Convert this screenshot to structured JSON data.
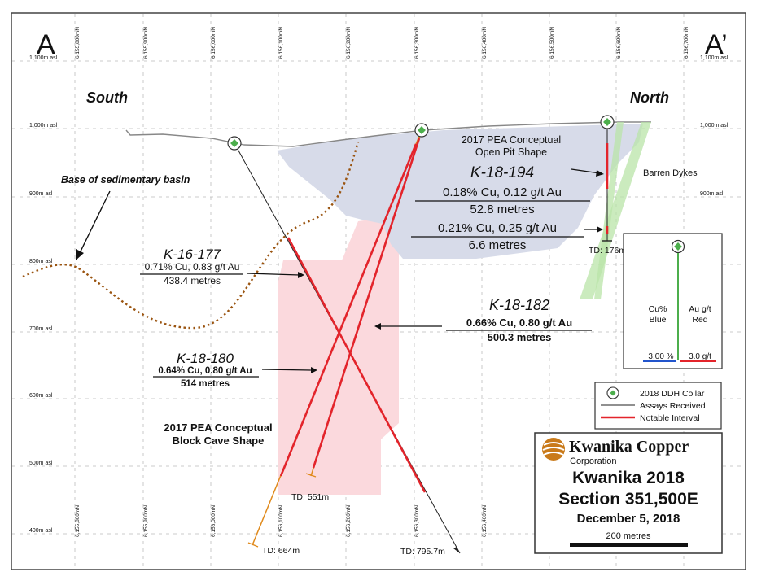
{
  "section_letters": {
    "left": "A",
    "right": "A’"
  },
  "directions": {
    "south": "South",
    "north": "North"
  },
  "elevation_labels": [
    "1,100m asl",
    "1,000m asl",
    "900m asl",
    "800m asl",
    "700m asl",
    "600m asl",
    "500m asl",
    "400m asl"
  ],
  "northing_labels": [
    "6,155,800mN",
    "6,155,900mN",
    "6,156,000mN",
    "6,156,100mN",
    "6,156,200mN",
    "6,156,300mN",
    "6,156,400mN",
    "6,156,500mN",
    "6,156,600mN",
    "6,156,700mN"
  ],
  "pit_label": [
    "2017 PEA Conceptual",
    "Open Pit Shape"
  ],
  "cave_label": [
    "2017 PEA Conceptual",
    "Block Cave Shape"
  ],
  "basin_label": "Base of sedimentary basin",
  "barren_dykes_label": "Barren Dykes",
  "holes": {
    "k18194": {
      "name": "K-18-194",
      "interval1_grade": "0.18% Cu, 0.12 g/t Au",
      "interval1_length": "52.8 metres",
      "interval2_grade": "0.21% Cu, 0.25 g/t Au",
      "interval2_length": "6.6 metres",
      "td": "TD: 176m"
    },
    "k16177": {
      "name": "K-16-177",
      "grade": "0.71% Cu, 0.83 g/t Au",
      "length": "438.4 metres",
      "td": "TD: 795.7m"
    },
    "k18182": {
      "name": "K-18-182",
      "grade": "0.66% Cu, 0.80 g/t Au",
      "length": "500.3 metres",
      "td": "TD: 551m"
    },
    "k18180": {
      "name": "K-18-180",
      "grade": "0.64% Cu, 0.80 g/t Au",
      "length": "514 metres",
      "td": "TD: 664m"
    }
  },
  "scale_box": {
    "left_label": [
      "Cu%",
      "Blue"
    ],
    "right_label": [
      "Au g/t",
      "Red"
    ],
    "left_value": "3.00 %",
    "right_value": "3.0 g/t"
  },
  "legend": {
    "items": [
      {
        "label": "2018 DDH Collar",
        "icon": "diamond-collar-icon"
      },
      {
        "label": "Assays Received",
        "icon": "black-line-icon"
      },
      {
        "label": "Notable Interval",
        "icon": "red-line-icon"
      }
    ]
  },
  "title_block": {
    "company": "Kwanika Copper",
    "company_sub": "Corporation",
    "title": "Kwanika 2018",
    "section": "Section 351,500E",
    "date": "December 5, 2018",
    "scale": "200 metres"
  },
  "colors": {
    "pit": "#d7dbe9",
    "cave": "#fbd9dd",
    "notable": "#e3242b",
    "basin": "#9a5410",
    "dykes": "#b9e4a8",
    "collar": "#4cae4c",
    "orange_trace": "#e08a1c",
    "logo": "#c97a1a"
  }
}
